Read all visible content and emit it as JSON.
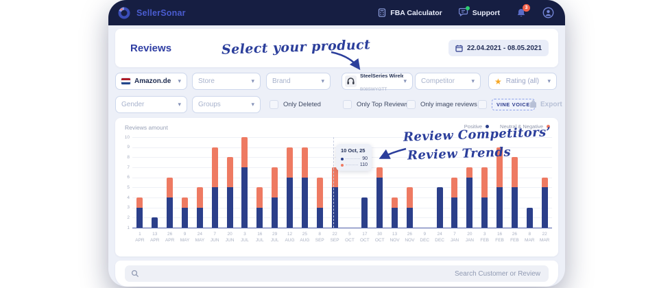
{
  "header": {
    "brand": "SellerSonar",
    "nav_fba": "FBA Calculator",
    "nav_support": "Support",
    "notifications_badge": "3"
  },
  "title_bar": {
    "title": "Reviews",
    "date_range": "22.04.2021 - 08.05.2021"
  },
  "filters": {
    "marketplace": {
      "value": "Amazon.de"
    },
    "store": {
      "placeholder": "Store"
    },
    "brand": {
      "placeholder": "Brand"
    },
    "product": {
      "name": "SteelSeries Wireless ...",
      "asin": "B08SWYGTT"
    },
    "competitor": {
      "placeholder": "Competitor"
    },
    "rating": {
      "value": "Rating (all)"
    },
    "gender": {
      "placeholder": "Gender"
    },
    "groups": {
      "placeholder": "Groups"
    },
    "only_deleted": "Only Deleted",
    "only_top_reviews": "Only Top Reviews",
    "only_image_reviews": "Only image reviews",
    "vine_voice": "VINE VOICE",
    "export_label": "Export"
  },
  "chart_data": {
    "type": "bar",
    "stacked": true,
    "title": "Reviews amount",
    "ylabel": "",
    "xlabel": "",
    "ylim": [
      1,
      10
    ],
    "yticks": [
      1,
      2,
      3,
      4,
      5,
      6,
      7,
      8,
      9,
      10
    ],
    "grid": true,
    "legend_position": "top-right",
    "value_encoding": "tops = stacked top position on axis (axis starts at 1); 0 = no bar",
    "categories": [
      [
        "1",
        "APR"
      ],
      [
        "13",
        "APR"
      ],
      [
        "26",
        "APR"
      ],
      [
        "9",
        "MAY"
      ],
      [
        "24",
        "MAY"
      ],
      [
        "7",
        "JUN"
      ],
      [
        "20",
        "JUN"
      ],
      [
        "3",
        "JUL"
      ],
      [
        "16",
        "JUL"
      ],
      [
        "29",
        "JUL"
      ],
      [
        "12",
        "AUG"
      ],
      [
        "25",
        "AUG"
      ],
      [
        "8",
        "SEP"
      ],
      [
        "22",
        "SEP"
      ],
      [
        "5",
        "OCT"
      ],
      [
        "17",
        "OCT"
      ],
      [
        "30",
        "OCT"
      ],
      [
        "13",
        "NOV"
      ],
      [
        "26",
        "NOV"
      ],
      [
        "9",
        "DEC"
      ],
      [
        "24",
        "DEC"
      ],
      [
        "7",
        "JAN"
      ],
      [
        "20",
        "JAN"
      ],
      [
        "3",
        "FEB"
      ],
      [
        "16",
        "FEB"
      ],
      [
        "26",
        "FEB"
      ],
      [
        "8",
        "MAR"
      ],
      [
        "22",
        "MAR"
      ]
    ],
    "series": [
      {
        "name": "Positive",
        "color": "#2b3f8a",
        "tops": [
          3,
          2,
          4,
          3,
          3,
          5,
          5,
          7,
          3,
          4,
          6,
          6,
          3,
          5,
          0,
          4,
          6,
          3,
          3,
          0,
          5,
          4,
          6,
          4,
          5,
          5,
          3,
          5
        ]
      },
      {
        "name": "Neutral & Negative",
        "color": "#ee7a62",
        "tops": [
          4,
          2,
          6,
          4,
          5,
          9,
          8,
          10,
          5,
          7,
          9,
          9,
          6,
          7,
          0,
          4,
          7,
          4,
          5,
          0,
          5,
          6,
          7,
          7,
          9,
          8,
          3,
          6
        ]
      }
    ]
  },
  "tooltip": {
    "date": "10 Oct, 25",
    "rows": [
      {
        "series": "Positive",
        "color": "#2b3f8a",
        "value": "90"
      },
      {
        "series": "Neutral & Negative",
        "color": "#ee7a62",
        "value": "110"
      }
    ]
  },
  "annotations": {
    "select_product": "Select your product",
    "review_competitors": "Review Competitors’",
    "review_trends": "Review Trends"
  },
  "search": {
    "placeholder": "Search Customer or Review"
  },
  "icons": {
    "logo-icon": "donut-swirl",
    "calculator-icon": "calculator",
    "support-chat-icon": "speech-bubble with green status dot",
    "notification-bell-icon": "bell",
    "profile-icon": "person in circle",
    "calendar-icon": "calendar",
    "marketplace-flag-icon": "red-white-blue horizontal stripes",
    "product-thumbnail-icon": "headphones",
    "star-icon": "★",
    "chevron-down-icon": "▾",
    "checkbox-icon": "☐",
    "export-icon": "export box",
    "search-icon": "magnifier",
    "legend-dot": "●"
  },
  "colors": {
    "header_bg": "#161e42",
    "brand_blue": "#4a5cd0",
    "accent_navy": "#2f3ea3",
    "bar_positive": "#2b3f8a",
    "bar_negative": "#ee7a62",
    "body_bg": "#edf0f8",
    "badge_red": "#f4604a",
    "star_orange": "#f6a723",
    "annotation_ink": "#2b3e9b"
  }
}
